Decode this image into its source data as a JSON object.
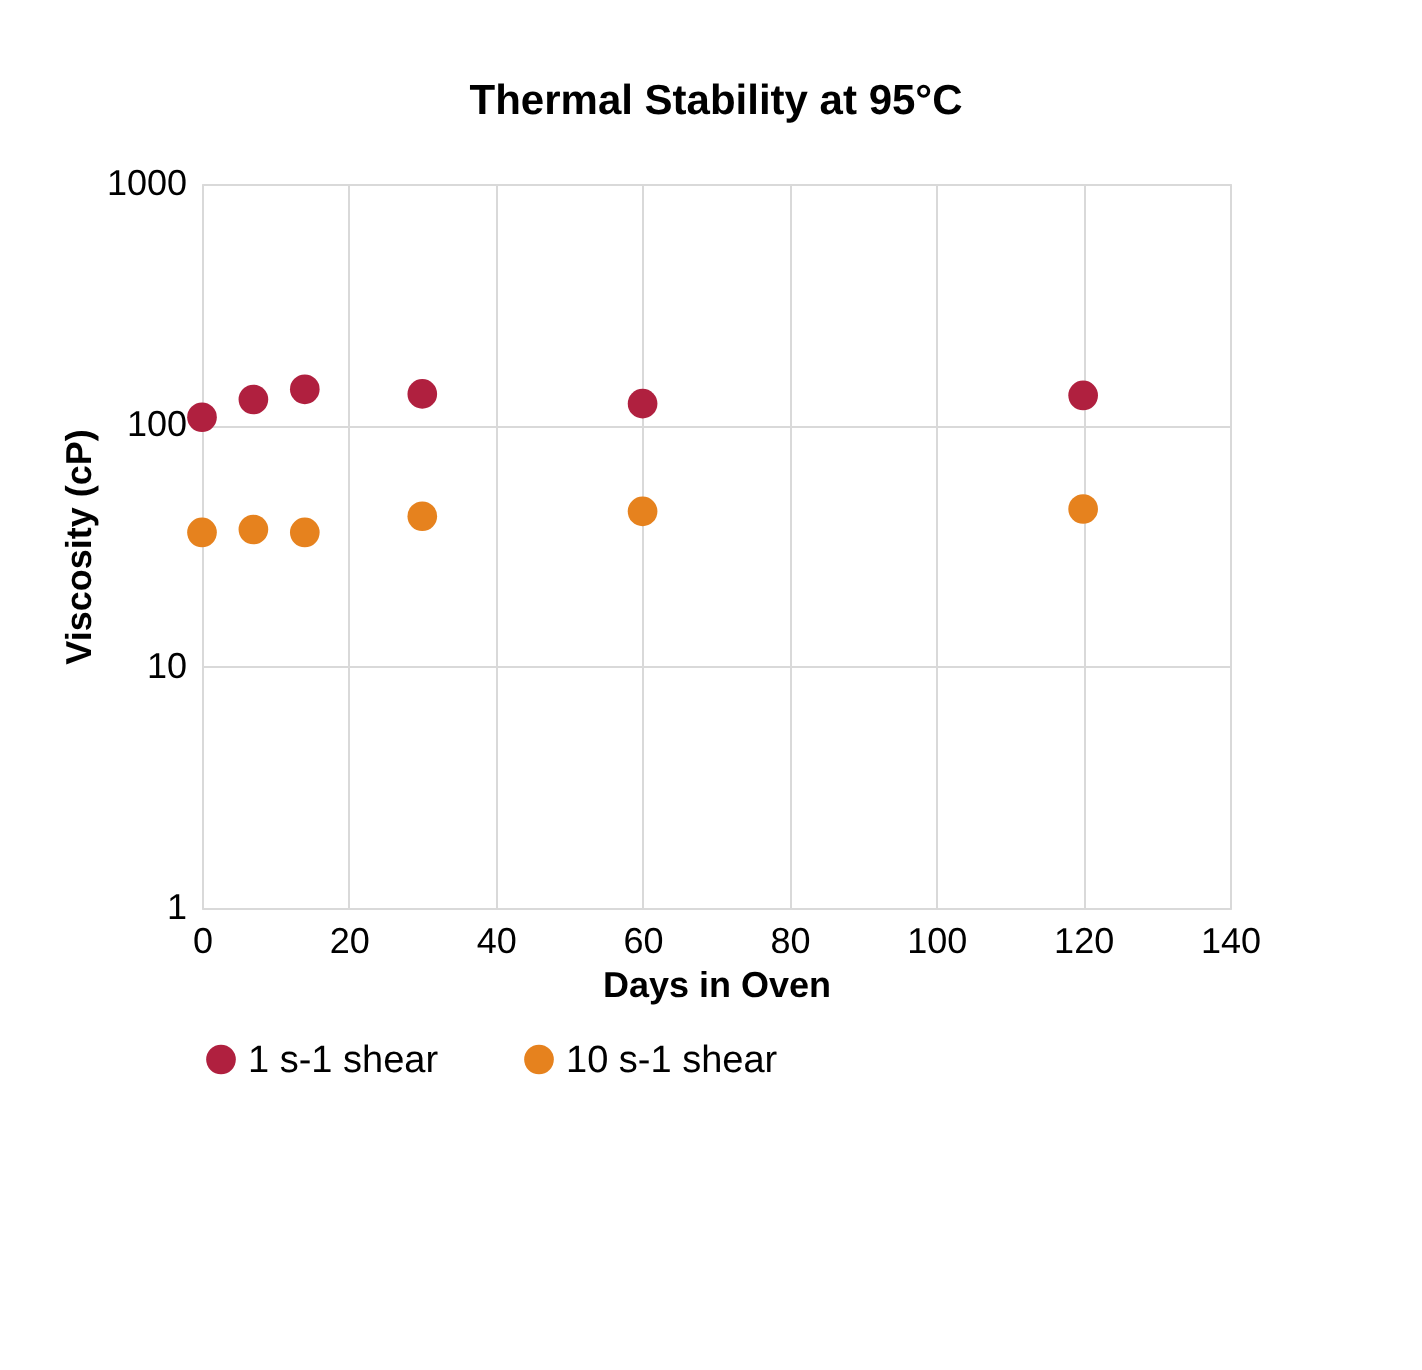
{
  "chart_data": {
    "type": "scatter",
    "title": "Thermal Stability at 95°C",
    "xlabel": "Days in Oven",
    "ylabel": "Viscosity (cP)",
    "x": [
      0,
      7,
      14,
      30,
      60,
      120
    ],
    "series": [
      {
        "name": "1 s-1 shear",
        "color": "#b0203f",
        "values": [
          108,
          128,
          141,
          135,
          123,
          133
        ]
      },
      {
        "name": "10 s-1 shear",
        "color": "#e6821e",
        "values": [
          36,
          37,
          36,
          42,
          44,
          45
        ]
      }
    ],
    "xlim": [
      0,
      140
    ],
    "xticks": [
      0,
      20,
      40,
      60,
      80,
      100,
      120,
      140
    ],
    "ylim": [
      1,
      1000
    ],
    "yticks": [
      1,
      10,
      100,
      1000
    ],
    "log": "y",
    "grid": true,
    "legend": "bottom",
    "marker": "circle"
  }
}
